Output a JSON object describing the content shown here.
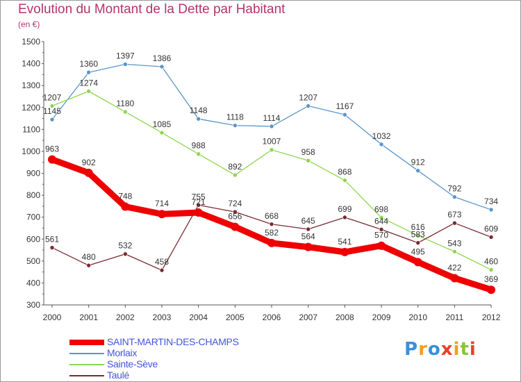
{
  "header": {
    "title": "Evolution du Montant de la Dette par Habitant",
    "subtitle": "(en €)"
  },
  "colors": {
    "title": "#b5336a",
    "legend_text": "#4455dd",
    "axis": "#333333"
  },
  "chart_data": {
    "type": "line",
    "title": "Evolution du Montant de la Dette par Habitant",
    "subtitle": "(en €)",
    "x": [
      "2000",
      "2001",
      "2002",
      "2003",
      "2004",
      "2005",
      "2006",
      "2007",
      "2008",
      "2009",
      "2010",
      "2011",
      "2012"
    ],
    "ylim": [
      300,
      1500
    ],
    "yticks": [
      300,
      400,
      500,
      600,
      700,
      800,
      900,
      1000,
      1100,
      1200,
      1300,
      1400,
      1500
    ],
    "grid": false,
    "legend": "bottom-left",
    "series": [
      {
        "name": "SAINT-MARTIN-DES-CHAMPS",
        "color": "#ee0000",
        "values": [
          963,
          902,
          748,
          714,
          721,
          656,
          582,
          564,
          541,
          570,
          495,
          422,
          369
        ],
        "labels": [
          "963",
          "902",
          "748",
          "714",
          "721",
          "656",
          "582",
          "564",
          "541",
          "570",
          "495",
          "422",
          "369"
        ]
      },
      {
        "name": "Morlaix",
        "color": "#5b95c9",
        "values": [
          1145,
          1360,
          1397,
          1386,
          1148,
          1118,
          1114,
          1207,
          1167,
          1032,
          912,
          792,
          734
        ],
        "labels": [
          "1145",
          "1360",
          "1397",
          "1386",
          "1148",
          "1118",
          "1114",
          "1207",
          "1167",
          "1032",
          "912",
          "792",
          "734"
        ]
      },
      {
        "name": "Sainte-Sève",
        "color": "#8ed650",
        "values": [
          1207,
          1274,
          1180,
          1085,
          988,
          892,
          1007,
          958,
          868,
          698,
          616,
          543,
          460
        ],
        "labels": [
          "1207",
          "1274",
          "1180",
          "1085",
          "988",
          "892",
          "1007",
          "958",
          "868",
          "698",
          "616",
          "543",
          "460"
        ]
      },
      {
        "name": "Taulé",
        "color": "#7a2a30",
        "values": [
          561,
          480,
          532,
          458,
          755,
          724,
          668,
          645,
          699,
          644,
          583,
          673,
          609
        ],
        "labels": [
          "561",
          "480",
          "532",
          "458",
          "755",
          "724",
          "668",
          "645",
          "699",
          "644",
          "583",
          "673",
          "609"
        ]
      }
    ]
  },
  "logo": {
    "letters": [
      "P",
      "r",
      "o",
      "x",
      "i",
      "t",
      "i"
    ],
    "colors": [
      "#3a8fd8",
      "#f0a020",
      "#3a8fd8",
      "#e8402a",
      "#f0a020",
      "#8ac43a",
      "#e8402a"
    ]
  }
}
